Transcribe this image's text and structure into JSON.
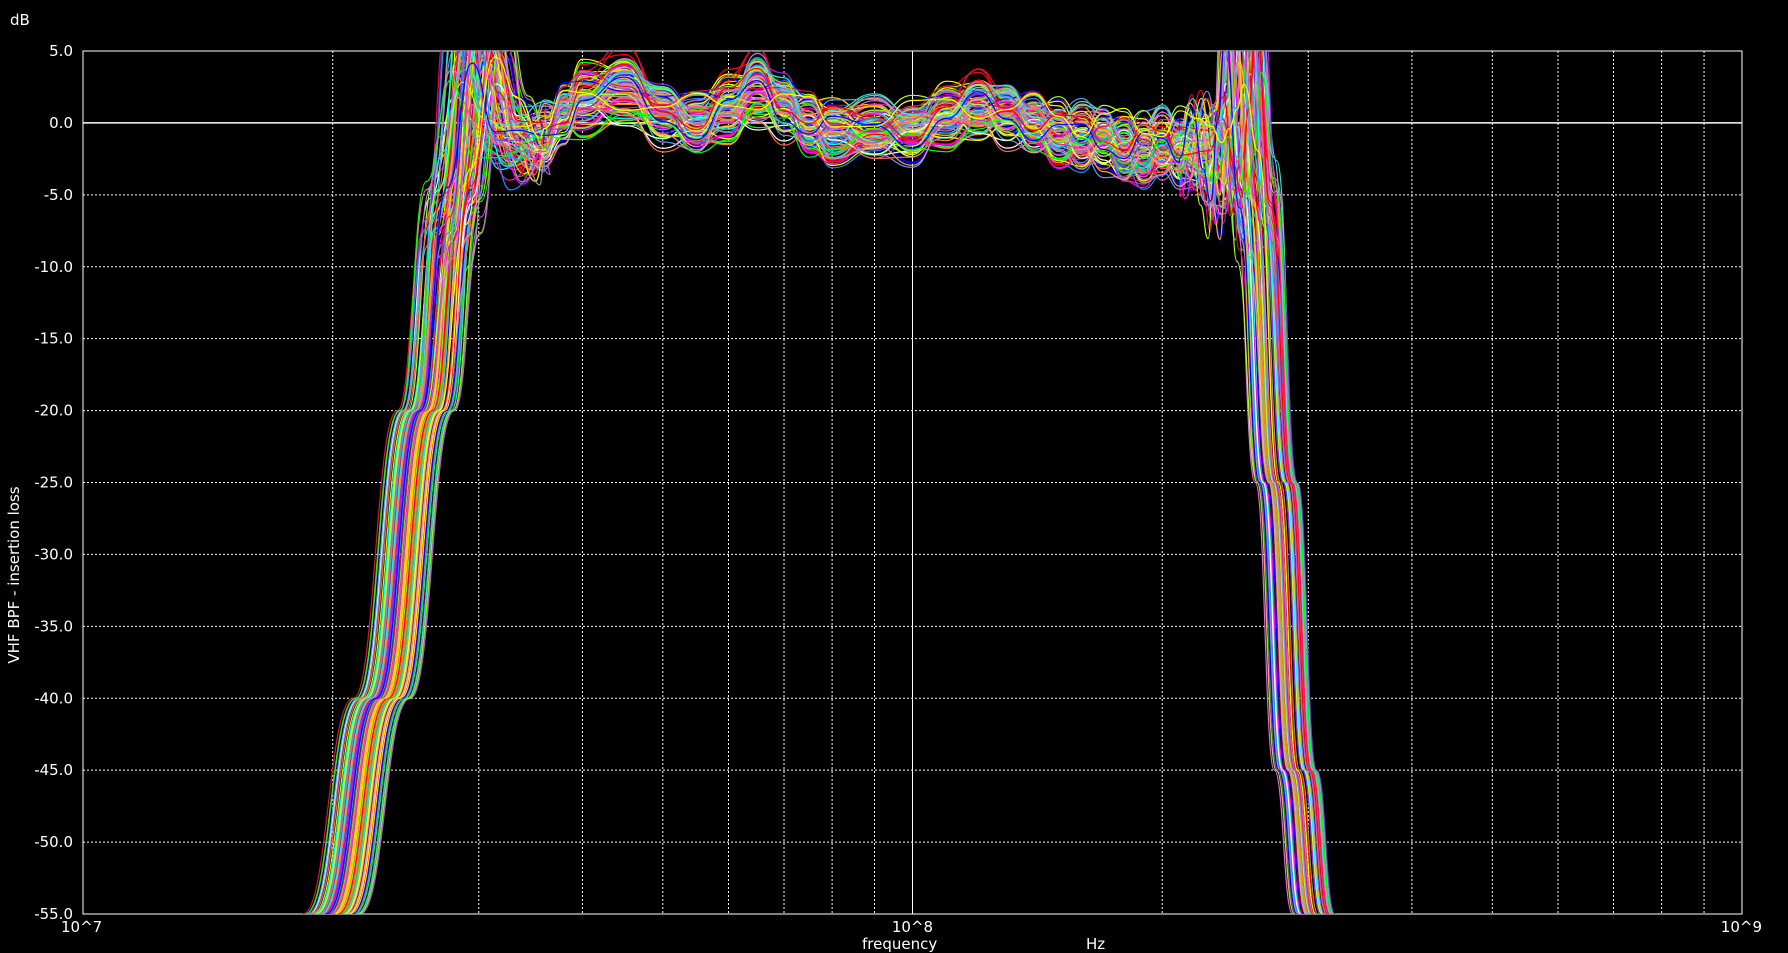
{
  "chart_data": {
    "type": "line",
    "ylabel": "VHF BPF - insertion loss",
    "yunit": "dB",
    "xlabel": "frequency",
    "xunit": "Hz",
    "xscale": "log",
    "xlim": [
      10000000,
      1000000000
    ],
    "ylim": [
      -55,
      5
    ],
    "x_tick_labels": [
      "10^7",
      "10^8",
      "10^9"
    ],
    "y_tick_labels": [
      "5.0",
      "0.0",
      "-5.0",
      "-10.0",
      "-15.0",
      "-20.0",
      "-25.0",
      "-30.0",
      "-35.0",
      "-40.0",
      "-45.0",
      "-50.0",
      "-55.0"
    ],
    "y_ticks": [
      5,
      0,
      -5,
      -10,
      -15,
      -20,
      -25,
      -30,
      -35,
      -40,
      -45,
      -50,
      -55
    ],
    "grid": true,
    "background": "#000000",
    "monte_carlo_runs": 100,
    "nominal_curve": {
      "x": [
        20000000,
        23000000,
        26000000,
        28000000,
        30000000,
        32000000,
        34000000,
        36000000,
        38000000,
        40000000,
        45000000,
        50000000,
        55000000,
        60000000,
        65000000,
        70000000,
        75000000,
        80000000,
        90000000,
        100000000,
        110000000,
        120000000,
        130000000,
        140000000,
        150000000,
        160000000,
        170000000,
        180000000,
        190000000,
        200000000,
        210000000,
        220000000,
        228000000,
        235000000,
        240000000,
        245000000,
        250000000,
        260000000,
        275000000,
        290000000,
        305000000
      ],
      "y": [
        -55,
        -40,
        -20,
        -5,
        5,
        0,
        -1.5,
        -1,
        0.5,
        1.5,
        2,
        0.5,
        0,
        1,
        2,
        1,
        0,
        -0.5,
        -0.5,
        -0.5,
        0.5,
        1,
        0.5,
        0,
        -0.5,
        -1,
        -1,
        -1.5,
        -1.5,
        -1.5,
        -1.5,
        -2,
        0,
        -3,
        -4,
        0,
        5,
        -5,
        -25,
        -45,
        -55
      ]
    },
    "series_colors": [
      "#ff0000",
      "#00ff00",
      "#0000ff",
      "#ffff00",
      "#00ffff",
      "#ff00ff",
      "#ff8c00",
      "#ff69b4",
      "#ffffff",
      "#a0a0a0",
      "#8a2be2",
      "#32cd32",
      "#ff1493",
      "#ffd700",
      "#1e90ff",
      "#dc143c",
      "#7fff00",
      "#da70d6",
      "#ff6347",
      "#40e0d0",
      "#adff2f",
      "#ba55d3",
      "#f4a460",
      "#6495ed"
    ]
  }
}
